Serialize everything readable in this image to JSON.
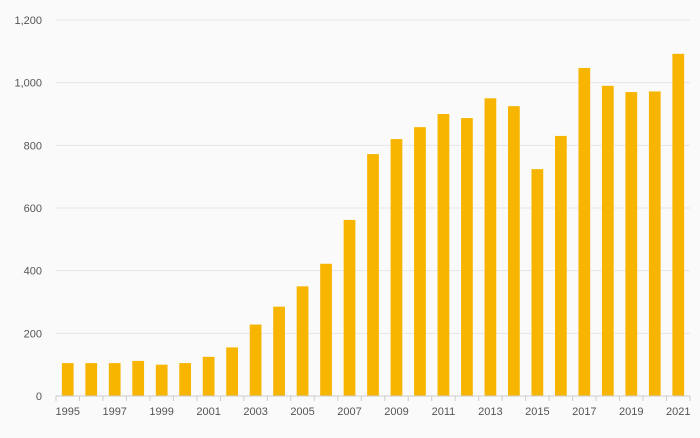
{
  "chart_data": {
    "type": "bar",
    "categories": [
      "1995",
      "1996",
      "1997",
      "1998",
      "1999",
      "2000",
      "2001",
      "2002",
      "2003",
      "2004",
      "2005",
      "2006",
      "2007",
      "2008",
      "2009",
      "2010",
      "2011",
      "2012",
      "2013",
      "2014",
      "2015",
      "2016",
      "2017",
      "2018",
      "2019",
      "2020",
      "2021"
    ],
    "x_tick_labels": [
      "1995",
      "1997",
      "1999",
      "2001",
      "2003",
      "2005",
      "2007",
      "2009",
      "2011",
      "2013",
      "2015",
      "2017",
      "2019",
      "2021"
    ],
    "values": [
      105,
      105,
      105,
      112,
      100,
      105,
      125,
      155,
      228,
      285,
      350,
      422,
      562,
      772,
      820,
      858,
      900,
      887,
      950,
      925,
      724,
      830,
      1047,
      990,
      970,
      972,
      1092
    ],
    "ylim": [
      0,
      1200
    ],
    "y_ticks": [
      0,
      200,
      400,
      600,
      800,
      1000,
      1200
    ],
    "y_tick_labels": [
      "0",
      "200",
      "400",
      "600",
      "800",
      "1,000",
      "1,200"
    ],
    "title": "",
    "xlabel": "",
    "ylabel": "",
    "grid": true,
    "legend": "none",
    "colors": {
      "bar": "#f7b500",
      "grid": "#e6e6e6",
      "axis": "#cccccc",
      "background": "#fafafa",
      "tick_text": "#555555"
    }
  }
}
